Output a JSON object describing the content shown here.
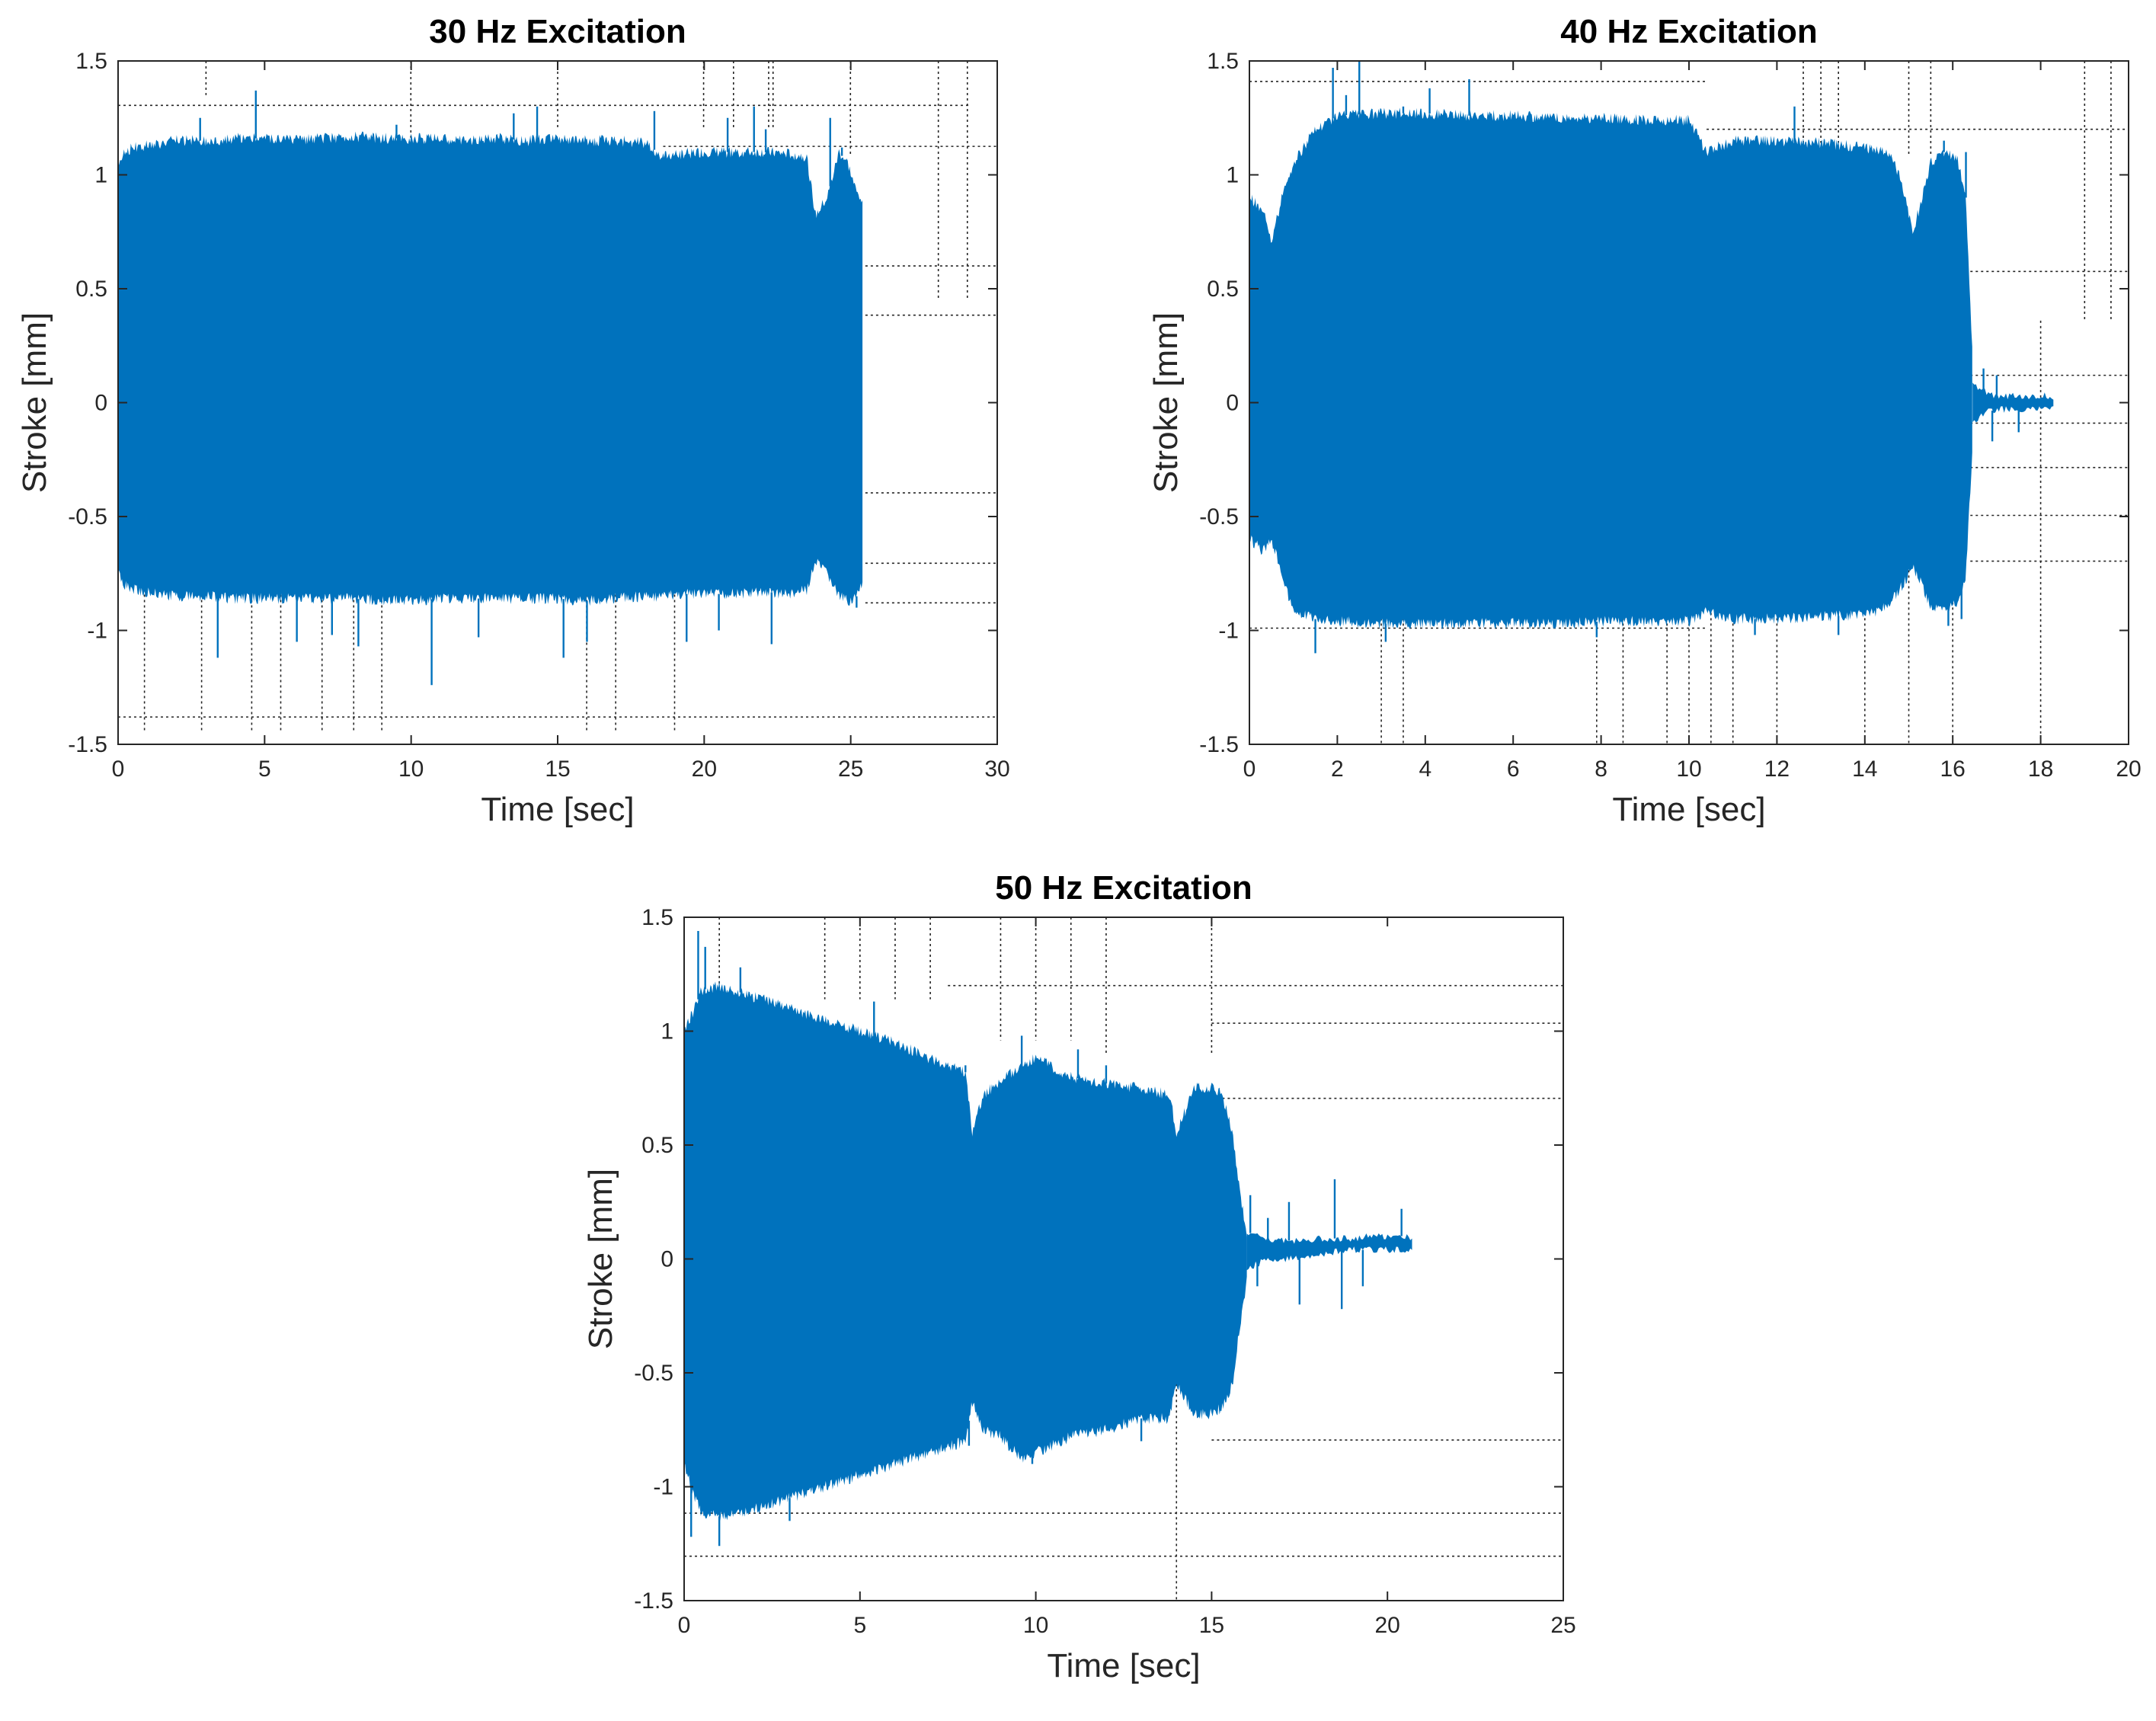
{
  "chart_data": [
    {
      "type": "line",
      "title": "30 Hz Excitation",
      "xlabel": "Time [sec]",
      "ylabel": "Stroke [mm]",
      "xlim": [
        0,
        30
      ],
      "ylim": [
        -1.5,
        1.5
      ],
      "grid": true,
      "xticks": [
        0,
        5,
        10,
        15,
        20,
        25,
        30
      ],
      "yticks": [
        -1.5,
        -1,
        -0.5,
        0,
        0.5,
        1,
        1.5
      ],
      "xtick_labels": [
        "0",
        "5",
        "10",
        "15",
        "20",
        "25",
        "30"
      ],
      "ytick_labels": [
        "-1.5",
        "-1",
        "-0.5",
        "0",
        "0.5",
        "1",
        "1.5"
      ],
      "series": [
        {
          "name": "Stroke",
          "color": "#0072bd",
          "envelope": {
            "t": [
              0,
              0.2,
              0.5,
              1,
              2,
              3,
              4,
              5,
              6,
              7,
              8,
              9,
              10,
              11,
              12,
              13,
              14,
              15,
              16,
              17,
              18,
              18.6,
              19,
              20,
              21,
              22,
              23,
              23.5,
              23.8,
              24.2,
              24.6,
              24.9,
              25.2,
              25.4
            ],
            "upper": [
              1.05,
              1.1,
              1.12,
              1.13,
              1.15,
              1.15,
              1.16,
              1.16,
              1.15,
              1.16,
              1.17,
              1.16,
              1.16,
              1.16,
              1.15,
              1.16,
              1.15,
              1.16,
              1.15,
              1.15,
              1.14,
              1.08,
              1.09,
              1.1,
              1.1,
              1.1,
              1.09,
              1.08,
              0.82,
              0.9,
              1.1,
              1.05,
              0.92,
              0.9
            ],
            "lower": [
              -0.75,
              -0.8,
              -0.82,
              -0.83,
              -0.85,
              -0.85,
              -0.86,
              -0.86,
              -0.86,
              -0.86,
              -0.86,
              -0.87,
              -0.87,
              -0.86,
              -0.86,
              -0.86,
              -0.86,
              -0.86,
              -0.87,
              -0.86,
              -0.85,
              -0.85,
              -0.84,
              -0.84,
              -0.84,
              -0.83,
              -0.84,
              -0.82,
              -0.7,
              -0.75,
              -0.85,
              -0.87,
              -0.85,
              -0.8
            ]
          },
          "spikes": [
            [
              4.7,
              1.37
            ],
            [
              2.8,
              1.25
            ],
            [
              13.5,
              1.27
            ],
            [
              14.3,
              1.3
            ],
            [
              9.5,
              1.22
            ],
            [
              18.3,
              1.28
            ],
            [
              20.8,
              1.25
            ],
            [
              22.1,
              1.2
            ],
            [
              24.3,
              1.25
            ],
            [
              24.7,
              1.12
            ],
            [
              21.7,
              1.3
            ],
            [
              3.4,
              -1.12
            ],
            [
              6.1,
              -1.05
            ],
            [
              7.3,
              -1.02
            ],
            [
              8.2,
              -1.07
            ],
            [
              10.7,
              -1.24
            ],
            [
              12.3,
              -1.03
            ],
            [
              15.2,
              -1.12
            ],
            [
              16.0,
              -1.05
            ],
            [
              19.4,
              -1.05
            ],
            [
              20.5,
              -1.0
            ],
            [
              22.3,
              -1.06
            ],
            [
              25.2,
              -0.9
            ]
          ]
        }
      ]
    },
    {
      "type": "line",
      "title": "40 Hz Excitation",
      "xlabel": "Time [sec]",
      "ylabel": "Stroke [mm]",
      "xlim": [
        0,
        20
      ],
      "ylim": [
        -1.5,
        1.5
      ],
      "grid": true,
      "xticks": [
        0,
        2,
        4,
        6,
        8,
        10,
        12,
        14,
        16,
        18,
        20
      ],
      "yticks": [
        -1.5,
        -1,
        -0.5,
        0,
        0.5,
        1,
        1.5
      ],
      "xtick_labels": [
        "0",
        "2",
        "4",
        "6",
        "8",
        "10",
        "12",
        "14",
        "16",
        "18",
        "20"
      ],
      "ytick_labels": [
        "-1.5",
        "-1",
        "-0.5",
        "0",
        "0.5",
        "1",
        "1.5"
      ],
      "series": [
        {
          "name": "Stroke",
          "color": "#0072bd",
          "envelope": {
            "t": [
              0,
              0.3,
              0.5,
              0.8,
              1,
              1.5,
              2,
              3,
              4,
              5,
              6,
              7,
              8,
              9,
              10,
              10.4,
              11,
              12,
              13,
              14,
              14.5,
              14.8,
              15.1,
              15.3,
              15.5,
              15.8,
              16.1,
              16.3,
              16.45
            ],
            "upper": [
              0.9,
              0.85,
              0.7,
              0.95,
              1.05,
              1.2,
              1.26,
              1.27,
              1.27,
              1.26,
              1.26,
              1.25,
              1.25,
              1.24,
              1.24,
              1.1,
              1.15,
              1.15,
              1.14,
              1.12,
              1.1,
              1.0,
              0.75,
              0.9,
              1.05,
              1.1,
              1.08,
              0.9,
              0.2
            ],
            "lower": [
              -0.6,
              -0.65,
              -0.6,
              -0.8,
              -0.92,
              -0.95,
              -0.96,
              -0.97,
              -0.97,
              -0.97,
              -0.97,
              -0.97,
              -0.96,
              -0.96,
              -0.96,
              -0.92,
              -0.95,
              -0.95,
              -0.94,
              -0.93,
              -0.9,
              -0.82,
              -0.72,
              -0.8,
              -0.9,
              -0.92,
              -0.88,
              -0.75,
              -0.2
            ]
          },
          "tail": {
            "t": [
              16.45,
              16.6,
              16.8,
              17,
              17.3,
              17.6,
              17.9,
              18.1,
              18.3
            ],
            "upper": [
              0.1,
              0.06,
              0.04,
              0.03,
              0.03,
              0.03,
              0.03,
              0.03,
              0.02
            ],
            "lower": [
              -0.1,
              -0.06,
              -0.04,
              -0.03,
              -0.03,
              -0.03,
              -0.03,
              -0.03,
              -0.02
            ]
          },
          "spikes": [
            [
              1.9,
              1.47
            ],
            [
              2.5,
              1.5
            ],
            [
              2.2,
              1.35
            ],
            [
              4.1,
              1.38
            ],
            [
              5.0,
              1.42
            ],
            [
              3.5,
              1.3
            ],
            [
              12.4,
              1.3
            ],
            [
              15.8,
              1.15
            ],
            [
              16.3,
              1.1
            ],
            [
              16.7,
              0.15
            ],
            [
              17.0,
              0.12
            ],
            [
              1.5,
              -1.1
            ],
            [
              3.1,
              -1.05
            ],
            [
              7.9,
              -1.03
            ],
            [
              11.5,
              -1.02
            ],
            [
              13.4,
              -1.02
            ],
            [
              15.9,
              -0.98
            ],
            [
              16.2,
              -0.95
            ],
            [
              16.9,
              -0.17
            ],
            [
              17.5,
              -0.13
            ]
          ]
        }
      ]
    },
    {
      "type": "line",
      "title": "50 Hz Excitation",
      "xlabel": "Time [sec]",
      "ylabel": "Stroke [mm]",
      "xlim": [
        0,
        25
      ],
      "ylim": [
        -1.5,
        1.5
      ],
      "grid": true,
      "xticks": [
        0,
        5,
        10,
        15,
        20,
        25
      ],
      "yticks": [
        -1.5,
        -1,
        -0.5,
        0,
        0.5,
        1,
        1.5
      ],
      "xtick_labels": [
        "0",
        "5",
        "10",
        "15",
        "20",
        "25"
      ],
      "ytick_labels": [
        "-1.5",
        "-1",
        "-0.5",
        "0",
        "0.5",
        "1",
        "1.5"
      ],
      "series": [
        {
          "name": "Stroke",
          "color": "#0072bd",
          "envelope": {
            "t": [
              0,
              0.3,
              0.5,
              1,
              2,
              3,
              4,
              5,
              6,
              7,
              8,
              8.2,
              8.5,
              9,
              9.6,
              10,
              11,
              12,
              13,
              13.8,
              14,
              14.5,
              15,
              15.3,
              15.6,
              15.8,
              16.0
            ],
            "upper": [
              1.0,
              1.1,
              1.18,
              1.2,
              1.15,
              1.1,
              1.05,
              1.0,
              0.95,
              0.88,
              0.82,
              0.55,
              0.72,
              0.78,
              0.85,
              0.88,
              0.8,
              0.77,
              0.75,
              0.72,
              0.55,
              0.75,
              0.75,
              0.72,
              0.55,
              0.3,
              0.1
            ],
            "lower": [
              -0.9,
              -1.05,
              -1.12,
              -1.13,
              -1.1,
              -1.05,
              -1.0,
              -0.95,
              -0.9,
              -0.85,
              -0.8,
              -0.62,
              -0.75,
              -0.78,
              -0.88,
              -0.85,
              -0.78,
              -0.75,
              -0.7,
              -0.7,
              -0.55,
              -0.68,
              -0.68,
              -0.65,
              -0.55,
              -0.3,
              -0.1
            ]
          },
          "tail": {
            "t": [
              16.0,
              16.3,
              16.8,
              17.5,
              18.0,
              18.5,
              19.0,
              19.5,
              20.0,
              20.5,
              20.7
            ],
            "upper": [
              0.12,
              0.1,
              0.08,
              0.08,
              0.09,
              0.09,
              0.09,
              0.1,
              0.1,
              0.1,
              0.09
            ],
            "lower": [
              -0.05,
              -0.02,
              0.0,
              0.0,
              0.02,
              0.03,
              0.04,
              0.04,
              0.04,
              0.04,
              0.05
            ]
          },
          "spikes": [
            [
              0.4,
              1.44
            ],
            [
              0.6,
              1.37
            ],
            [
              1.6,
              1.28
            ],
            [
              5.4,
              1.13
            ],
            [
              8.0,
              0.85
            ],
            [
              9.6,
              0.98
            ],
            [
              11.2,
              0.92
            ],
            [
              12.0,
              0.85
            ],
            [
              16.1,
              0.28
            ],
            [
              16.6,
              0.18
            ],
            [
              17.2,
              0.25
            ],
            [
              18.5,
              0.35
            ],
            [
              20.4,
              0.22
            ],
            [
              0.2,
              -1.22
            ],
            [
              1.0,
              -1.26
            ],
            [
              3.0,
              -1.15
            ],
            [
              8.1,
              -0.82
            ],
            [
              9.9,
              -0.9
            ],
            [
              13.0,
              -0.8
            ],
            [
              16.3,
              -0.12
            ],
            [
              17.5,
              -0.2
            ],
            [
              18.7,
              -0.22
            ],
            [
              19.3,
              -0.12
            ]
          ]
        }
      ]
    }
  ]
}
